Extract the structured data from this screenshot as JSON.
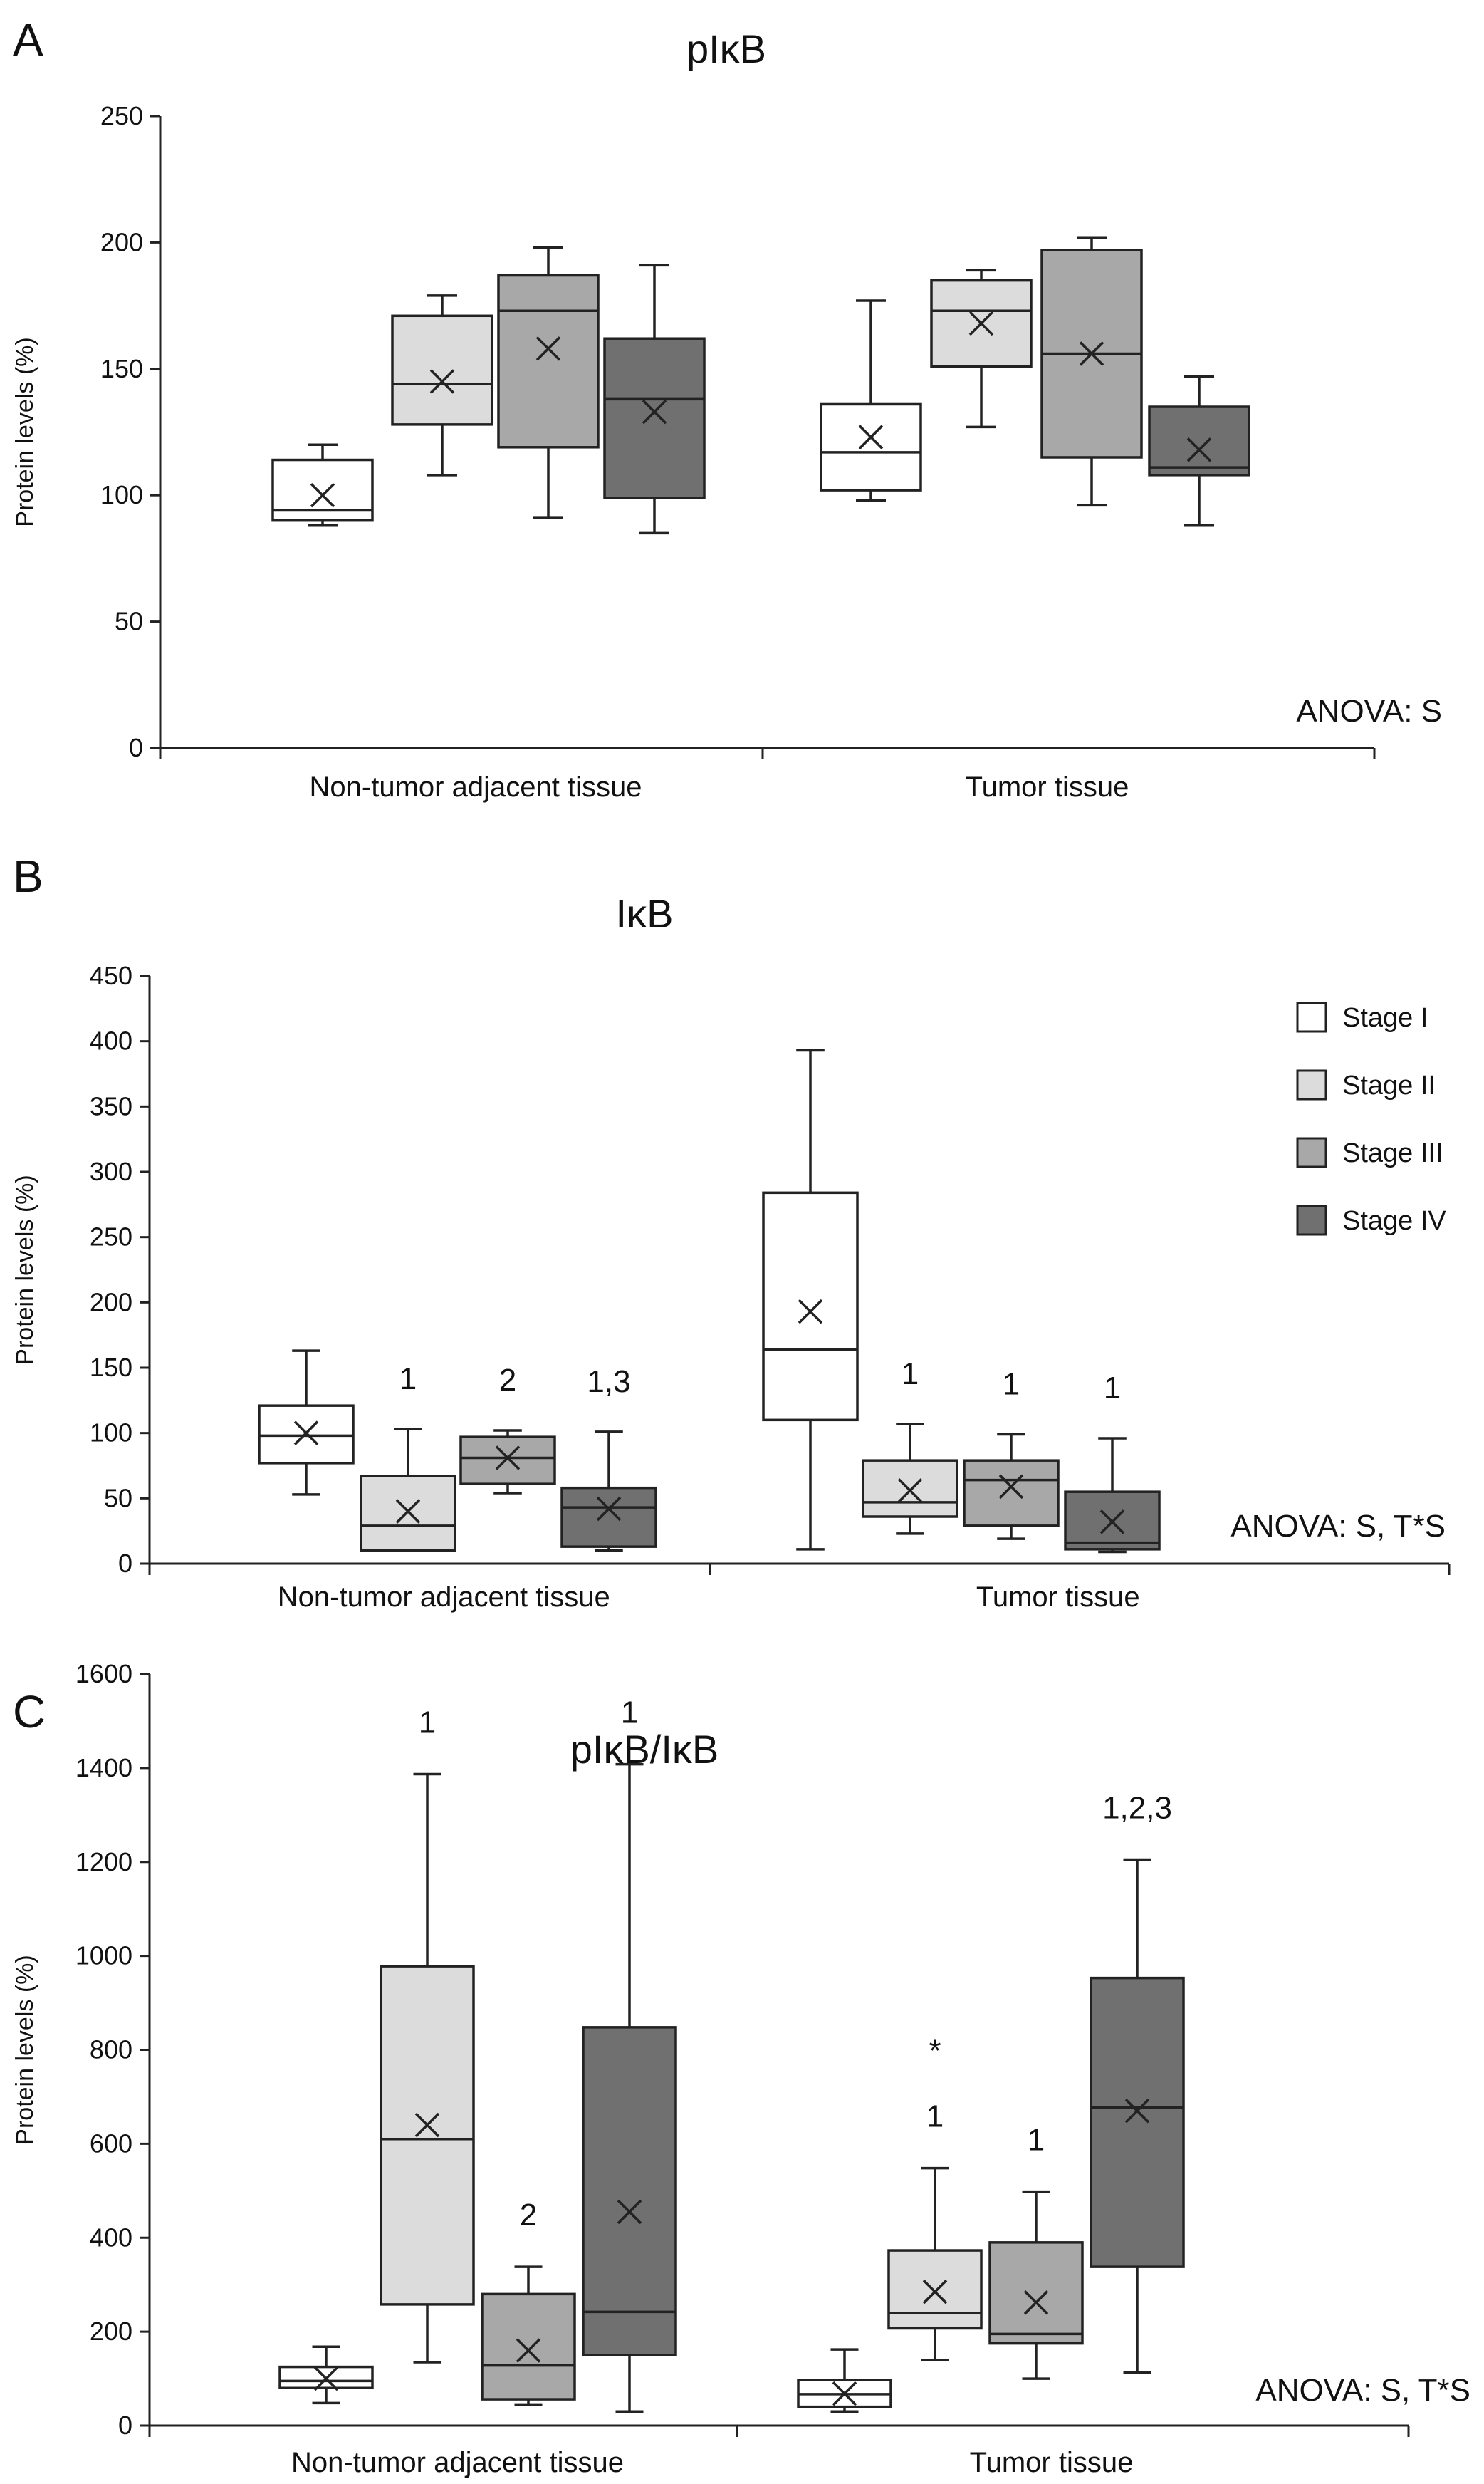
{
  "legend": {
    "entries": [
      "Stage I",
      "Stage II",
      "Stage III",
      "Stage IV"
    ],
    "colors": [
      "#ffffff",
      "#dcdcdc",
      "#a8a8a8",
      "#707070"
    ]
  },
  "chart_data": [
    {
      "type": "box",
      "panel": "A",
      "title": "pIκB",
      "ylabel": "Protein levels (%)",
      "ylim": [
        0,
        250
      ],
      "yticks": [
        0,
        50,
        100,
        150,
        200,
        250
      ],
      "categories": [
        "Non-tumor adjacent tissue",
        "Tumor tissue"
      ],
      "anova": "ANOVA: S",
      "groups": [
        [
          {
            "stage": "Stage I",
            "min": 88,
            "q1": 90,
            "median": 94,
            "q3": 114,
            "max": 120,
            "mean": 100,
            "label": ""
          },
          {
            "stage": "Stage II",
            "min": 108,
            "q1": 128,
            "median": 144,
            "q3": 171,
            "max": 179,
            "mean": 145,
            "label": ""
          },
          {
            "stage": "Stage III",
            "min": 91,
            "q1": 119,
            "median": 173,
            "q3": 187,
            "max": 198,
            "mean": 158,
            "label": ""
          },
          {
            "stage": "Stage IV",
            "min": 85,
            "q1": 99,
            "median": 138,
            "q3": 162,
            "max": 191,
            "mean": 133,
            "label": ""
          }
        ],
        [
          {
            "stage": "Stage I",
            "min": 98,
            "q1": 102,
            "median": 117,
            "q3": 136,
            "max": 177,
            "mean": 123,
            "label": ""
          },
          {
            "stage": "Stage II",
            "min": 127,
            "q1": 151,
            "median": 173,
            "q3": 185,
            "max": 189,
            "mean": 168,
            "label": ""
          },
          {
            "stage": "Stage III",
            "min": 96,
            "q1": 115,
            "median": 156,
            "q3": 197,
            "max": 202,
            "mean": 156,
            "label": ""
          },
          {
            "stage": "Stage IV",
            "min": 88,
            "q1": 108,
            "median": 111,
            "q3": 135,
            "max": 147,
            "mean": 118,
            "label": ""
          }
        ]
      ]
    },
    {
      "type": "box",
      "panel": "B",
      "title": "IκB",
      "ylabel": "Protein levels (%)",
      "ylim": [
        0,
        450
      ],
      "yticks": [
        0,
        50,
        100,
        150,
        200,
        250,
        300,
        350,
        400,
        450
      ],
      "categories": [
        "Non-tumor adjacent tissue",
        "Tumor tissue"
      ],
      "anova": "ANOVA: S, T*S",
      "groups": [
        [
          {
            "stage": "Stage I",
            "min": 53,
            "q1": 77,
            "median": 98,
            "q3": 121,
            "max": 163,
            "mean": 100,
            "label": ""
          },
          {
            "stage": "Stage II",
            "min": 10,
            "q1": 10,
            "median": 29,
            "q3": 67,
            "max": 103,
            "mean": 40,
            "label": "1"
          },
          {
            "stage": "Stage III",
            "min": 54,
            "q1": 61,
            "median": 81,
            "q3": 97,
            "max": 102,
            "mean": 81,
            "label": "2"
          },
          {
            "stage": "Stage IV",
            "min": 10,
            "q1": 13,
            "median": 43,
            "q3": 58,
            "max": 101,
            "mean": 42,
            "label": "1,3"
          }
        ],
        [
          {
            "stage": "Stage I",
            "min": 11,
            "q1": 110,
            "median": 164,
            "q3": 284,
            "max": 393,
            "mean": 193,
            "label": ""
          },
          {
            "stage": "Stage II",
            "min": 23,
            "q1": 36,
            "median": 47,
            "q3": 79,
            "max": 107,
            "mean": 56,
            "label": "1"
          },
          {
            "stage": "Stage III",
            "min": 19,
            "q1": 29,
            "median": 64,
            "q3": 79,
            "max": 99,
            "mean": 59,
            "label": "1"
          },
          {
            "stage": "Stage IV",
            "min": 9,
            "q1": 11,
            "median": 16,
            "q3": 55,
            "max": 96,
            "mean": 32,
            "label": "1"
          }
        ]
      ]
    },
    {
      "type": "box",
      "panel": "C",
      "title": "pIκB/IκB",
      "ylabel": "Protein levels (%)",
      "ylim": [
        0,
        1600
      ],
      "yticks": [
        0,
        200,
        400,
        600,
        800,
        1000,
        1200,
        1400,
        1600
      ],
      "categories": [
        "Non-tumor adjacent tissue",
        "Tumor tissue"
      ],
      "anova": "ANOVA: S, T*S",
      "groups": [
        [
          {
            "stage": "Stage I",
            "min": 48,
            "q1": 80,
            "median": 95,
            "q3": 125,
            "max": 168,
            "mean": 100,
            "label": ""
          },
          {
            "stage": "Stage II",
            "min": 135,
            "q1": 258,
            "median": 610,
            "q3": 978,
            "max": 1387,
            "mean": 640,
            "label": "1"
          },
          {
            "stage": "Stage III",
            "min": 45,
            "q1": 56,
            "median": 128,
            "q3": 280,
            "max": 338,
            "mean": 160,
            "label": "2"
          },
          {
            "stage": "Stage IV",
            "min": 30,
            "q1": 150,
            "median": 242,
            "q3": 848,
            "max": 1408,
            "mean": 455,
            "label": "1"
          }
        ],
        [
          {
            "stage": "Stage I",
            "min": 30,
            "q1": 40,
            "median": 67,
            "q3": 97,
            "max": 162,
            "mean": 68,
            "label": ""
          },
          {
            "stage": "Stage II",
            "min": 140,
            "q1": 207,
            "median": 240,
            "q3": 373,
            "max": 548,
            "mean": 285,
            "label": "1",
            "star": "*"
          },
          {
            "stage": "Stage III",
            "min": 100,
            "q1": 175,
            "median": 195,
            "q3": 390,
            "max": 498,
            "mean": 262,
            "label": "1"
          },
          {
            "stage": "Stage IV",
            "min": 113,
            "q1": 338,
            "median": 677,
            "q3": 953,
            "max": 1205,
            "mean": 670,
            "label": "1,2,3"
          }
        ]
      ]
    }
  ]
}
